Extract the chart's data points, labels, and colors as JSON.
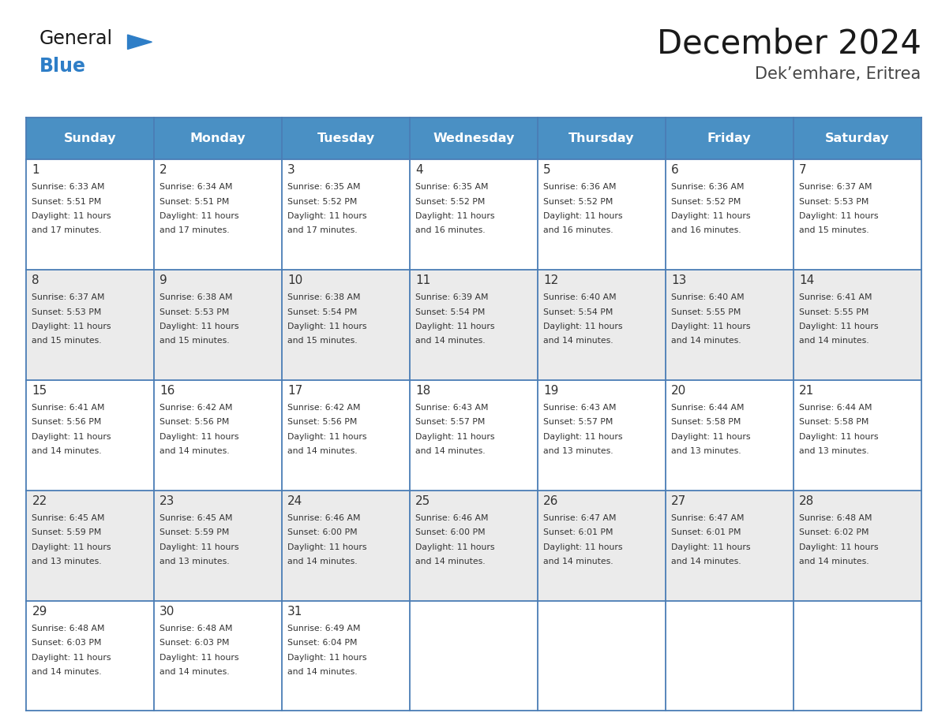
{
  "title": "December 2024",
  "subtitle": "Dek’emhare, Eritrea",
  "days_of_week": [
    "Sunday",
    "Monday",
    "Tuesday",
    "Wednesday",
    "Thursday",
    "Friday",
    "Saturday"
  ],
  "header_bg": "#4A90C4",
  "header_text": "#FFFFFF",
  "odd_row_bg": "#FFFFFF",
  "even_row_bg": "#EBEBEB",
  "grid_line_color": "#4A7DB5",
  "day_number_color": "#333333",
  "cell_text_color": "#333333",
  "title_color": "#1a1a1a",
  "subtitle_color": "#444444",
  "logo_general_color": "#1a1a1a",
  "logo_blue_color": "#2e7ec7",
  "calendar_data": [
    [
      {
        "day": 1,
        "sunrise": "6:33 AM",
        "sunset": "5:51 PM",
        "daylight_h": "11 hours",
        "daylight_m": "and 17 minutes."
      },
      {
        "day": 2,
        "sunrise": "6:34 AM",
        "sunset": "5:51 PM",
        "daylight_h": "11 hours",
        "daylight_m": "and 17 minutes."
      },
      {
        "day": 3,
        "sunrise": "6:35 AM",
        "sunset": "5:52 PM",
        "daylight_h": "11 hours",
        "daylight_m": "and 17 minutes."
      },
      {
        "day": 4,
        "sunrise": "6:35 AM",
        "sunset": "5:52 PM",
        "daylight_h": "11 hours",
        "daylight_m": "and 16 minutes."
      },
      {
        "day": 5,
        "sunrise": "6:36 AM",
        "sunset": "5:52 PM",
        "daylight_h": "11 hours",
        "daylight_m": "and 16 minutes."
      },
      {
        "day": 6,
        "sunrise": "6:36 AM",
        "sunset": "5:52 PM",
        "daylight_h": "11 hours",
        "daylight_m": "and 16 minutes."
      },
      {
        "day": 7,
        "sunrise": "6:37 AM",
        "sunset": "5:53 PM",
        "daylight_h": "11 hours",
        "daylight_m": "and 15 minutes."
      }
    ],
    [
      {
        "day": 8,
        "sunrise": "6:37 AM",
        "sunset": "5:53 PM",
        "daylight_h": "11 hours",
        "daylight_m": "and 15 minutes."
      },
      {
        "day": 9,
        "sunrise": "6:38 AM",
        "sunset": "5:53 PM",
        "daylight_h": "11 hours",
        "daylight_m": "and 15 minutes."
      },
      {
        "day": 10,
        "sunrise": "6:38 AM",
        "sunset": "5:54 PM",
        "daylight_h": "11 hours",
        "daylight_m": "and 15 minutes."
      },
      {
        "day": 11,
        "sunrise": "6:39 AM",
        "sunset": "5:54 PM",
        "daylight_h": "11 hours",
        "daylight_m": "and 14 minutes."
      },
      {
        "day": 12,
        "sunrise": "6:40 AM",
        "sunset": "5:54 PM",
        "daylight_h": "11 hours",
        "daylight_m": "and 14 minutes."
      },
      {
        "day": 13,
        "sunrise": "6:40 AM",
        "sunset": "5:55 PM",
        "daylight_h": "11 hours",
        "daylight_m": "and 14 minutes."
      },
      {
        "day": 14,
        "sunrise": "6:41 AM",
        "sunset": "5:55 PM",
        "daylight_h": "11 hours",
        "daylight_m": "and 14 minutes."
      }
    ],
    [
      {
        "day": 15,
        "sunrise": "6:41 AM",
        "sunset": "5:56 PM",
        "daylight_h": "11 hours",
        "daylight_m": "and 14 minutes."
      },
      {
        "day": 16,
        "sunrise": "6:42 AM",
        "sunset": "5:56 PM",
        "daylight_h": "11 hours",
        "daylight_m": "and 14 minutes."
      },
      {
        "day": 17,
        "sunrise": "6:42 AM",
        "sunset": "5:56 PM",
        "daylight_h": "11 hours",
        "daylight_m": "and 14 minutes."
      },
      {
        "day": 18,
        "sunrise": "6:43 AM",
        "sunset": "5:57 PM",
        "daylight_h": "11 hours",
        "daylight_m": "and 14 minutes."
      },
      {
        "day": 19,
        "sunrise": "6:43 AM",
        "sunset": "5:57 PM",
        "daylight_h": "11 hours",
        "daylight_m": "and 13 minutes."
      },
      {
        "day": 20,
        "sunrise": "6:44 AM",
        "sunset": "5:58 PM",
        "daylight_h": "11 hours",
        "daylight_m": "and 13 minutes."
      },
      {
        "day": 21,
        "sunrise": "6:44 AM",
        "sunset": "5:58 PM",
        "daylight_h": "11 hours",
        "daylight_m": "and 13 minutes."
      }
    ],
    [
      {
        "day": 22,
        "sunrise": "6:45 AM",
        "sunset": "5:59 PM",
        "daylight_h": "11 hours",
        "daylight_m": "and 13 minutes."
      },
      {
        "day": 23,
        "sunrise": "6:45 AM",
        "sunset": "5:59 PM",
        "daylight_h": "11 hours",
        "daylight_m": "and 13 minutes."
      },
      {
        "day": 24,
        "sunrise": "6:46 AM",
        "sunset": "6:00 PM",
        "daylight_h": "11 hours",
        "daylight_m": "and 14 minutes."
      },
      {
        "day": 25,
        "sunrise": "6:46 AM",
        "sunset": "6:00 PM",
        "daylight_h": "11 hours",
        "daylight_m": "and 14 minutes."
      },
      {
        "day": 26,
        "sunrise": "6:47 AM",
        "sunset": "6:01 PM",
        "daylight_h": "11 hours",
        "daylight_m": "and 14 minutes."
      },
      {
        "day": 27,
        "sunrise": "6:47 AM",
        "sunset": "6:01 PM",
        "daylight_h": "11 hours",
        "daylight_m": "and 14 minutes."
      },
      {
        "day": 28,
        "sunrise": "6:48 AM",
        "sunset": "6:02 PM",
        "daylight_h": "11 hours",
        "daylight_m": "and 14 minutes."
      }
    ],
    [
      {
        "day": 29,
        "sunrise": "6:48 AM",
        "sunset": "6:03 PM",
        "daylight_h": "11 hours",
        "daylight_m": "and 14 minutes."
      },
      {
        "day": 30,
        "sunrise": "6:48 AM",
        "sunset": "6:03 PM",
        "daylight_h": "11 hours",
        "daylight_m": "and 14 minutes."
      },
      {
        "day": 31,
        "sunrise": "6:49 AM",
        "sunset": "6:04 PM",
        "daylight_h": "11 hours",
        "daylight_m": "and 14 minutes."
      },
      null,
      null,
      null,
      null
    ]
  ]
}
